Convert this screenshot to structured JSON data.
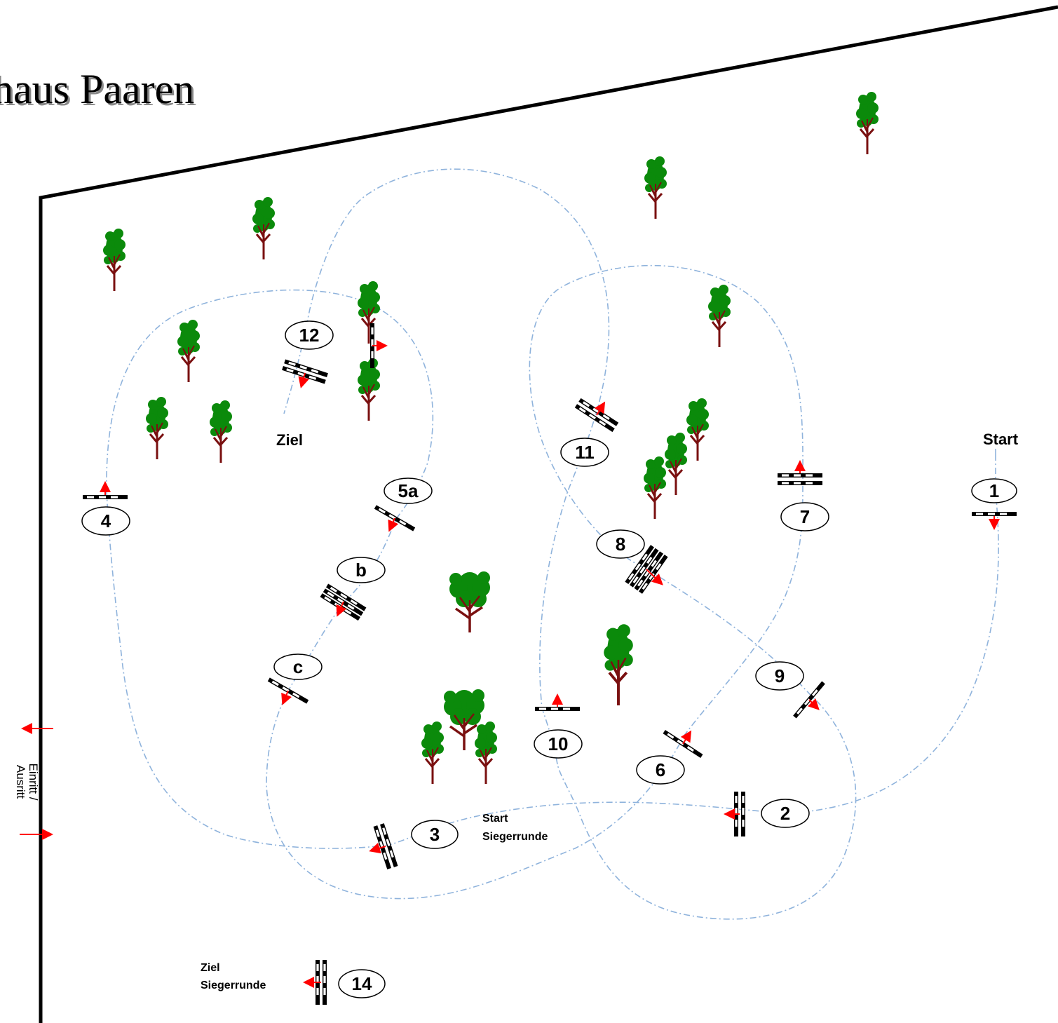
{
  "title": "haus Paaren",
  "labels": {
    "start": "Start",
    "finish": "Ziel",
    "start_winner_round_line1": "Start",
    "start_winner_round_line2": "Siegerrunde",
    "finish_winner_round_line1": "Ziel",
    "finish_winner_round_line2": "Siegerrunde",
    "gate_line1": "Einritt /",
    "gate_line2": "Ausritt"
  },
  "obstacles": [
    {
      "id": "obstacle-1",
      "number": "1"
    },
    {
      "id": "obstacle-2",
      "number": "2"
    },
    {
      "id": "obstacle-3",
      "number": "3"
    },
    {
      "id": "obstacle-4",
      "number": "4"
    },
    {
      "id": "obstacle-5a",
      "number": "5a"
    },
    {
      "id": "obstacle-5b",
      "number": "b"
    },
    {
      "id": "obstacle-5c",
      "number": "c"
    },
    {
      "id": "obstacle-6",
      "number": "6"
    },
    {
      "id": "obstacle-7",
      "number": "7"
    },
    {
      "id": "obstacle-8",
      "number": "8"
    },
    {
      "id": "obstacle-9",
      "number": "9"
    },
    {
      "id": "obstacle-10",
      "number": "10"
    },
    {
      "id": "obstacle-11",
      "number": "11"
    },
    {
      "id": "obstacle-12",
      "number": "12"
    },
    {
      "id": "obstacle-14",
      "number": "14"
    }
  ],
  "colors": {
    "arena_border": "#000000",
    "course_path": "#8fb3dc",
    "direction_arrow": "#ff0000",
    "tree_foliage": "#0b8a0b",
    "tree_trunk": "#7a1010"
  }
}
